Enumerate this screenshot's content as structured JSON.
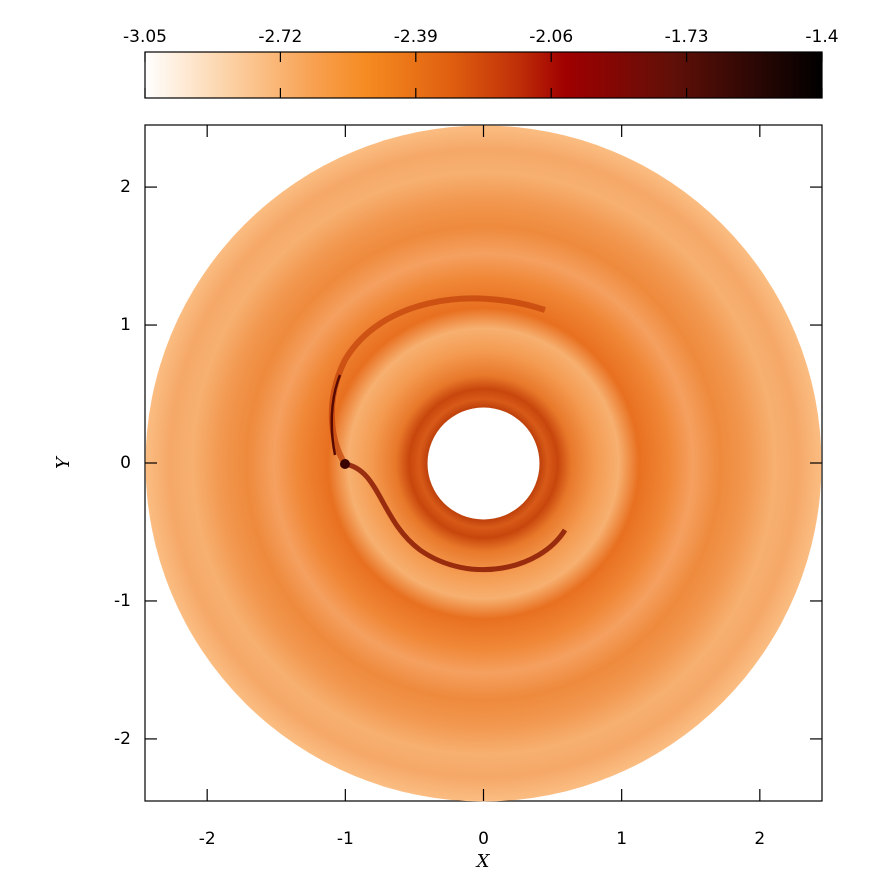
{
  "chart_data": {
    "type": "image",
    "xlabel": "X",
    "ylabel": "Y",
    "xlim": [
      -2.45,
      2.45
    ],
    "ylim": [
      -2.45,
      2.45
    ],
    "xticks": [
      -2,
      -1,
      0,
      1,
      2
    ],
    "yticks": [
      -2,
      -1,
      0,
      1,
      2
    ],
    "colorbar": {
      "lim": [
        -3.05,
        -1.4
      ],
      "ticks": [
        -3.05,
        -2.72,
        -2.39,
        -2.06,
        -1.73,
        -1.4
      ]
    }
  }
}
